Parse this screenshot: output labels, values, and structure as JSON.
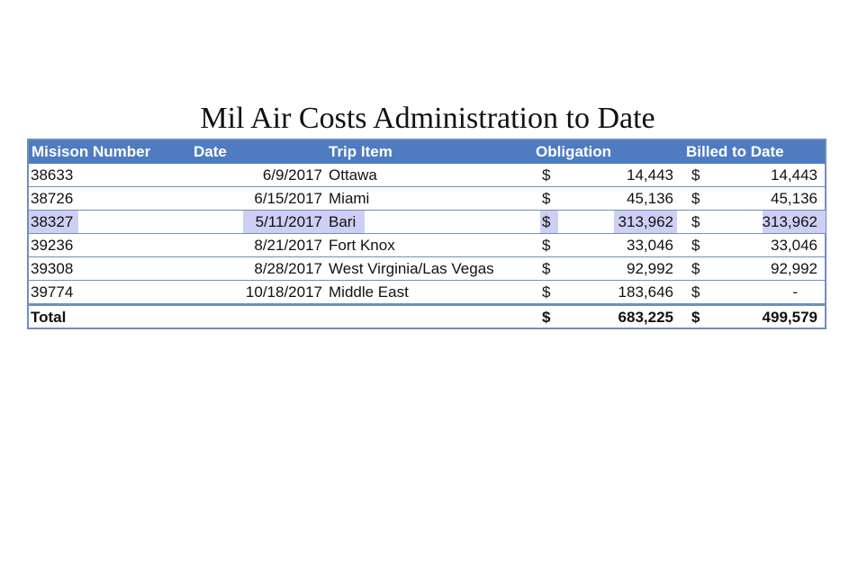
{
  "title": "Mil Air Costs Administration to Date",
  "headers": {
    "mission_number": "Misison Number",
    "date": "Date",
    "trip_item": "Trip Item",
    "obligation": "Obligation",
    "billed_to_date": "Billed to Date"
  },
  "rows": [
    {
      "mission": "38633",
      "date": "6/9/2017",
      "trip": "Ottawa",
      "ob_symbol": "$",
      "obligation": "14,443",
      "billed_symbol": "$",
      "billed": "14,443",
      "highlighted": false
    },
    {
      "mission": "38726",
      "date": "6/15/2017",
      "trip": "Miami",
      "ob_symbol": "$",
      "obligation": "45,136",
      "billed_symbol": "$",
      "billed": "45,136",
      "highlighted": false
    },
    {
      "mission": "38327",
      "date": "5/11/2017",
      "trip": "Bari",
      "ob_symbol": "$",
      "obligation": "313,962",
      "billed_symbol": "$",
      "billed": "313,962",
      "highlighted": true
    },
    {
      "mission": "39236",
      "date": "8/21/2017",
      "trip": "Fort Knox",
      "ob_symbol": "$",
      "obligation": "33,046",
      "billed_symbol": "$",
      "billed": "33,046",
      "highlighted": false
    },
    {
      "mission": "39308",
      "date": "8/28/2017",
      "trip": "West Virginia/Las Vegas",
      "ob_symbol": "$",
      "obligation": "92,992",
      "billed_symbol": "$",
      "billed": "92,992",
      "highlighted": false
    },
    {
      "mission": "39774",
      "date": "10/18/2017",
      "trip": "Middle East",
      "ob_symbol": "$",
      "obligation": "183,646",
      "billed_symbol": "$",
      "billed": "-",
      "highlighted": false
    }
  ],
  "total": {
    "label": "Total",
    "ob_symbol": "$",
    "obligation": "683,225",
    "billed_symbol": "$",
    "billed": "499,579"
  },
  "colors": {
    "header_bg": "#4f7cc0",
    "border": "#6f8fbf",
    "highlight": "#cdd0f4"
  }
}
